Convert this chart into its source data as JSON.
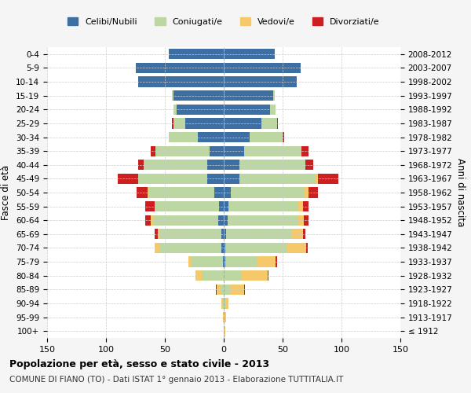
{
  "age_groups": [
    "100+",
    "95-99",
    "90-94",
    "85-89",
    "80-84",
    "75-79",
    "70-74",
    "65-69",
    "60-64",
    "55-59",
    "50-54",
    "45-49",
    "40-44",
    "35-39",
    "30-34",
    "25-29",
    "20-24",
    "15-19",
    "10-14",
    "5-9",
    "0-4"
  ],
  "birth_years": [
    "≤ 1912",
    "1913-1917",
    "1918-1922",
    "1923-1927",
    "1928-1932",
    "1933-1937",
    "1938-1942",
    "1943-1947",
    "1948-1952",
    "1953-1957",
    "1958-1962",
    "1963-1967",
    "1968-1972",
    "1973-1977",
    "1978-1982",
    "1983-1987",
    "1988-1992",
    "1993-1997",
    "1998-2002",
    "2003-2007",
    "2008-2012"
  ],
  "colors": {
    "celibe": "#3d6fa3",
    "coniugato": "#bdd7a3",
    "vedovo": "#f5c96a",
    "divorziato": "#cc1f1f"
  },
  "males": {
    "celibe": [
      0,
      0,
      0,
      0,
      0,
      1,
      2,
      2,
      5,
      4,
      8,
      14,
      14,
      12,
      22,
      33,
      40,
      43,
      73,
      75,
      47
    ],
    "coniugato": [
      0,
      0,
      1,
      3,
      19,
      27,
      53,
      52,
      55,
      54,
      56,
      59,
      54,
      46,
      25,
      10,
      3,
      1,
      0,
      0,
      0
    ],
    "vedovo": [
      0,
      1,
      1,
      3,
      5,
      2,
      4,
      2,
      2,
      1,
      1,
      0,
      0,
      0,
      0,
      0,
      0,
      0,
      0,
      0,
      0
    ],
    "divorziato": [
      0,
      0,
      0,
      1,
      0,
      0,
      0,
      3,
      5,
      8,
      9,
      17,
      5,
      4,
      0,
      1,
      0,
      0,
      0,
      0,
      0
    ]
  },
  "females": {
    "nubile": [
      0,
      0,
      0,
      0,
      0,
      1,
      1,
      2,
      3,
      4,
      6,
      13,
      13,
      17,
      22,
      32,
      39,
      42,
      62,
      65,
      43
    ],
    "coniugata": [
      0,
      0,
      1,
      5,
      15,
      27,
      52,
      55,
      60,
      59,
      62,
      65,
      56,
      49,
      28,
      13,
      5,
      1,
      0,
      0,
      0
    ],
    "vedova": [
      1,
      2,
      3,
      12,
      22,
      16,
      17,
      10,
      5,
      4,
      4,
      2,
      0,
      0,
      0,
      0,
      0,
      0,
      0,
      0,
      0
    ],
    "divorziata": [
      0,
      0,
      0,
      1,
      1,
      1,
      1,
      2,
      4,
      5,
      8,
      17,
      7,
      6,
      1,
      1,
      0,
      0,
      0,
      0,
      0
    ]
  },
  "xlim": 150,
  "title": "Popolazione per età, sesso e stato civile - 2013",
  "subtitle": "COMUNE DI FIANO (TO) - Dati ISTAT 1° gennaio 2013 - Elaborazione TUTTITALIA.IT",
  "ylabel_left": "Fasce di età",
  "ylabel_right": "Anni di nascita",
  "xlabel_ticks": [
    150,
    100,
    50,
    0,
    50,
    100,
    150
  ],
  "legend_labels": [
    "Celibi/Nubili",
    "Coniugati/e",
    "Vedovi/e",
    "Divorziati/e"
  ],
  "bg_color": "#f5f5f5",
  "plot_bg": "#ffffff"
}
